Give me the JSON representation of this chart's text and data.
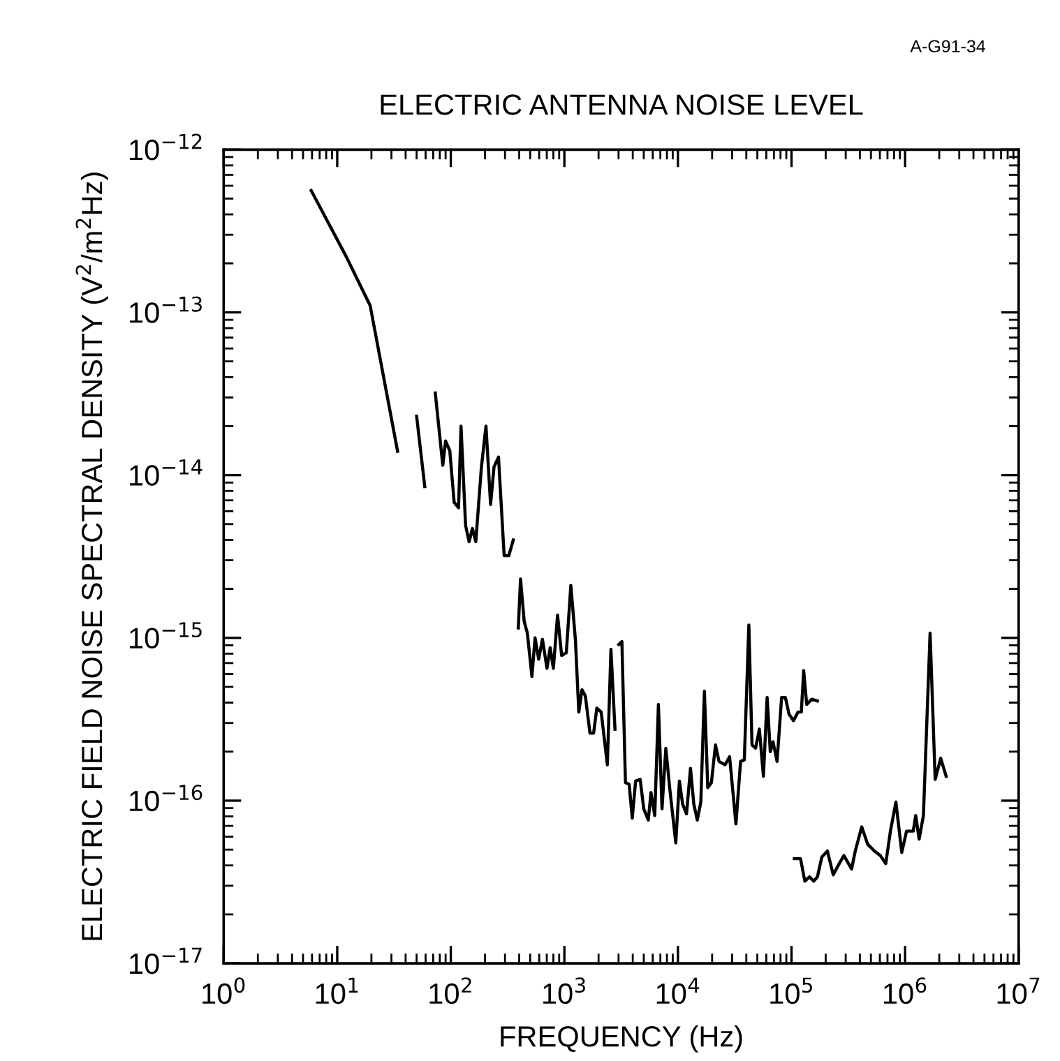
{
  "chart_data": {
    "type": "line",
    "title": "ELECTRIC ANTENNA NOISE LEVEL",
    "xlabel": "FREQUENCY (Hz)",
    "ylabel": "ELECTRIC FIELD NOISE SPECTRAL DENSITY (V$^{2}$/m$^{2}$Hz)",
    "annotations": [
      "A-G91-34"
    ],
    "log": "xy",
    "grid": false,
    "marker": "none",
    "line_style": "solid",
    "xlim": [
      1,
      10000000
    ],
    "ylim": [
      1e-17,
      1e-12
    ],
    "xticks": [
      {
        "value": 1,
        "label": "10$^{0}$"
      },
      {
        "value": 10,
        "label": "10$^{1}$"
      },
      {
        "value": 100,
        "label": "10$^{2}$"
      },
      {
        "value": 1000,
        "label": "10$^{3}$"
      },
      {
        "value": 10000,
        "label": "10$^{4}$"
      },
      {
        "value": 100000,
        "label": "10$^{5}$"
      },
      {
        "value": 1000000,
        "label": "10$^{6}$"
      },
      {
        "value": 10000000,
        "label": "10$^{7}$"
      }
    ],
    "yticks": [
      {
        "value": 1e-17,
        "label": "10$^{−17}$"
      },
      {
        "value": 1e-16,
        "label": "10$^{−16}$"
      },
      {
        "value": 1e-15,
        "label": "10$^{−15}$"
      },
      {
        "value": 1e-14,
        "label": "10$^{−14}$"
      },
      {
        "value": 1e-13,
        "label": "10$^{−13}$"
      },
      {
        "value": 1e-12,
        "label": "10$^{−12}$"
      }
    ],
    "series": [
      {
        "color": "#000000",
        "x": [
          5.9,
          12,
          19.5,
          34
        ],
        "values": [
          5.6e-13,
          2.2e-13,
          1.1e-13,
          1.4e-14
        ]
      },
      {
        "color": "#000000",
        "x": [
          50,
          59
        ],
        "values": [
          2.3e-14,
          8.5e-15
        ]
      },
      {
        "color": "#000000",
        "x": [
          73,
          85,
          90,
          98,
          107,
          117,
          123,
          135,
          145,
          155,
          166,
          186,
          204,
          224,
          240,
          263,
          295,
          324,
          355
        ],
        "values": [
          3.2e-14,
          1.15e-14,
          1.62e-14,
          1.41e-14,
          6.8e-15,
          6.3e-15,
          2e-14,
          4.9e-15,
          3.9e-15,
          4.7e-15,
          3.9e-15,
          1.12e-14,
          2e-14,
          6.6e-15,
          1.12e-14,
          1.29e-14,
          3.2e-15,
          3.2e-15,
          4e-15
        ]
      },
      {
        "color": "#000000",
        "x": [
          393,
          411,
          443,
          472,
          518,
          552,
          594,
          641,
          703,
          750,
          800,
          871,
          946,
          1040,
          1140,
          1250,
          1340,
          1430,
          1530,
          1680,
          1810,
          1930,
          2110,
          2390,
          2570,
          2790
        ],
        "values": [
          1.15e-15,
          2.3e-15,
          1.26e-15,
          1.07e-15,
          5.8e-16,
          1e-15,
          7.4e-16,
          9.8e-16,
          6.5e-16,
          8.7e-16,
          6.5e-16,
          1.38e-15,
          7.8e-16,
          8.1e-16,
          2.1e-15,
          9.8e-16,
          3.5e-16,
          4.8e-16,
          4.4e-16,
          2.6e-16,
          2.6e-16,
          3.7e-16,
          3.5e-16,
          1.66e-16,
          8.5e-16,
          2.75e-16
        ]
      },
      {
        "color": "#000000",
        "x": [
          3010,
          3210,
          3450,
          3720,
          3960,
          4240,
          4650,
          5000,
          5480,
          5790,
          6250,
          6730,
          7240,
          7820,
          8490,
          9570,
          10300,
          11000,
          11900,
          12900,
          13800,
          14800,
          15900,
          17100,
          18300,
          19700,
          21400,
          23000,
          26000,
          28500,
          32400,
          35600,
          38400,
          42100,
          44900,
          48300,
          52100,
          56600,
          61000,
          65000,
          68700,
          74600,
          81800,
          88300,
          95100,
          104000,
          114000,
          122000,
          128000,
          136000,
          151000,
          169000
        ],
        "values": [
          9.1e-16,
          9.5e-16,
          1.29e-16,
          1.26e-16,
          7.8e-17,
          1.32e-16,
          1.35e-16,
          8.9e-17,
          7.6e-17,
          1.12e-16,
          8.1e-17,
          3.9e-16,
          8.9e-17,
          2.1e-16,
          1.17e-16,
          5.5e-17,
          1.32e-16,
          9.5e-17,
          8.3e-17,
          1.58e-16,
          9.5e-17,
          7.6e-17,
          9.8e-17,
          4.7e-16,
          1.2e-16,
          1.29e-16,
          2.2e-16,
          1.74e-16,
          1.66e-16,
          1.86e-16,
          7.2e-17,
          1.74e-16,
          1.78e-16,
          1.2e-15,
          2.2e-16,
          2.1e-16,
          2.75e-16,
          1.41e-16,
          4.3e-16,
          2e-16,
          2.3e-16,
          1.74e-16,
          4.3e-16,
          4.3e-16,
          3.4e-16,
          3.1e-16,
          3.5e-16,
          3.5e-16,
          6.3e-16,
          3.9e-16,
          4.2e-16,
          4.1e-16
        ]
      },
      {
        "color": "#000000",
        "x": [
          106000,
          120000,
          131000,
          144000,
          157000,
          169000,
          185000,
          207000,
          233000,
          263000,
          289000,
          338000,
          364000,
          415000,
          468000,
          537000,
          605000,
          676000,
          743000,
          830000,
          935000,
          1030000,
          1180000,
          1240000,
          1330000,
          1450000,
          1660000,
          1840000,
          2060000,
          2300000
        ],
        "values": [
          4.4e-17,
          4.4e-17,
          3.2e-17,
          3.4e-17,
          3.2e-17,
          3.4e-17,
          4.5e-17,
          4.9e-17,
          3.5e-17,
          4.1e-17,
          4.6e-17,
          3.8e-17,
          4.9e-17,
          6.9e-17,
          5.4e-17,
          4.9e-17,
          4.6e-17,
          4.1e-17,
          6.5e-17,
          9.8e-17,
          4.8e-17,
          6.5e-17,
          6.5e-17,
          8.1e-17,
          5.8e-17,
          8.1e-17,
          1.07e-15,
          1.35e-16,
          1.82e-16,
          1.41e-16
        ]
      }
    ]
  }
}
